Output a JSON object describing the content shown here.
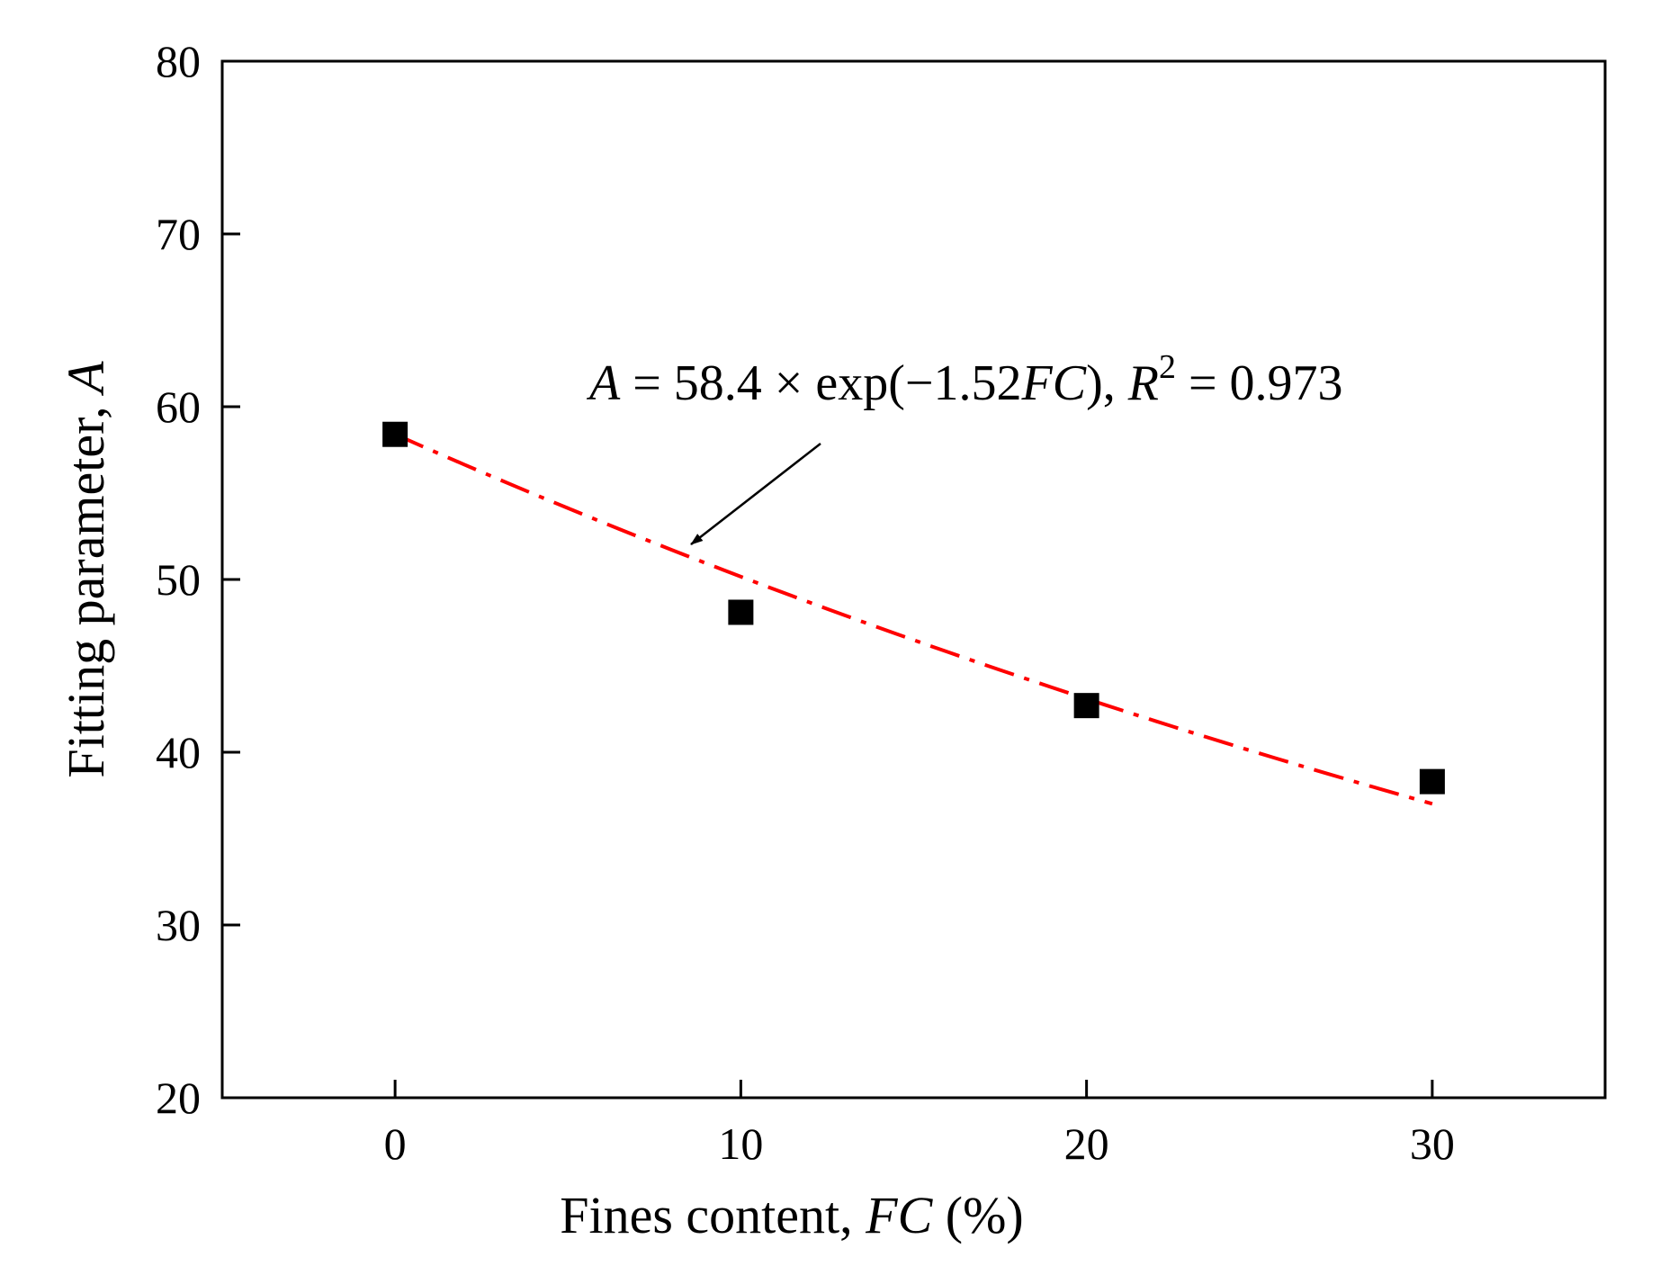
{
  "chart_data": {
    "type": "scatter",
    "x": [
      0,
      10,
      20,
      30
    ],
    "y": [
      58.4,
      48.1,
      42.7,
      38.3
    ],
    "xlim": [
      -5,
      35
    ],
    "ylim": [
      20,
      80
    ],
    "xticks": [
      0,
      10,
      20,
      30
    ],
    "yticks": [
      20,
      30,
      40,
      50,
      60,
      70,
      80
    ],
    "xlabel": {
      "text": "Fines content, ",
      "italic": "FC",
      "suffix": " (%)"
    },
    "ylabel": {
      "text": "Fitting parameter, ",
      "italic": "A"
    },
    "marker": "square",
    "marker_color": "#000000",
    "fit": {
      "A0": 58.4,
      "b": -1.52,
      "x_range": [
        0,
        30
      ],
      "x_scale": 0.01,
      "color": "#ff0000",
      "style": "dash-dot",
      "equation": {
        "lhs": "A",
        "eq": " = 58.4 × exp",
        "open": "(",
        "coef": "−1.52",
        "var": "FC",
        "close": ")",
        "sep": ", ",
        "r2_symbol": "R",
        "r2_exp": "2",
        "r2_value": " = 0.973"
      }
    },
    "grid": false,
    "legend": "none"
  }
}
